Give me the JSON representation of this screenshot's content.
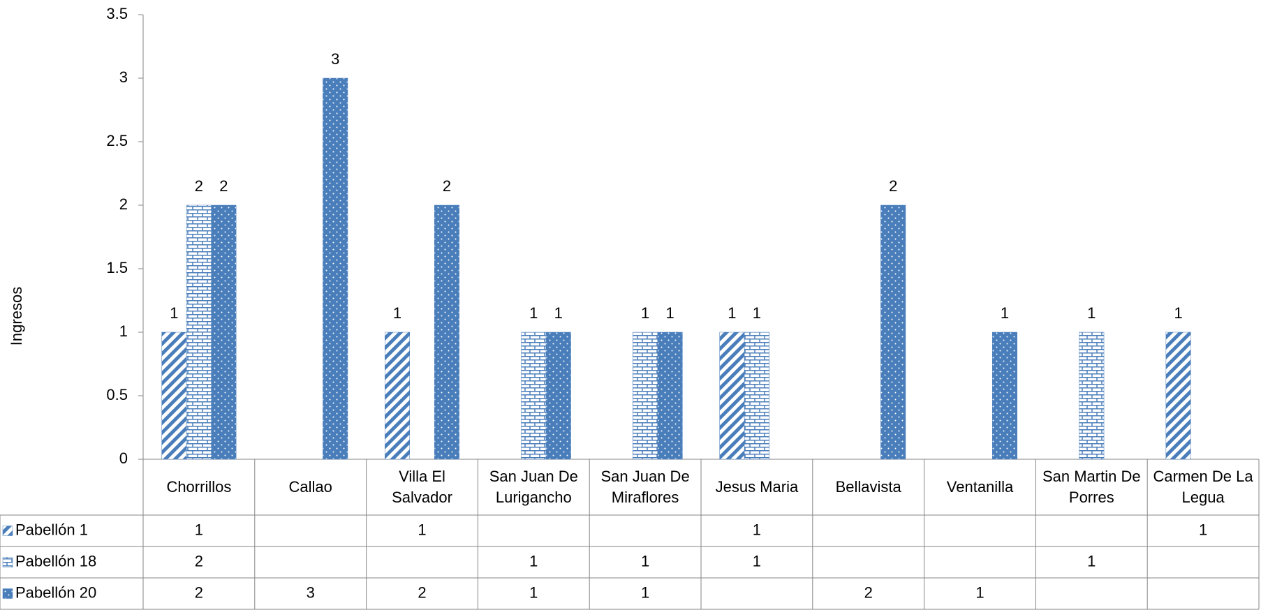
{
  "chart_data": {
    "type": "bar",
    "y_label": "Ingresos",
    "categories": [
      "Chorrillos",
      "Callao",
      "Villa El Salvador",
      "San Juan De Lurigancho",
      "San Juan De Miraflores",
      "Jesus Maria",
      "Bellavista",
      "Ventanilla",
      "San Martin De Porres",
      "Carmen De La Legua"
    ],
    "series": [
      {
        "name": "Pabellón 1",
        "color": "#4a7ebb",
        "pattern": "stripes",
        "values": [
          1,
          null,
          1,
          null,
          null,
          1,
          null,
          null,
          null,
          1
        ]
      },
      {
        "name": "Pabellón 18",
        "color": "#4a7ebb",
        "pattern": "brick",
        "values": [
          2,
          null,
          null,
          1,
          1,
          1,
          null,
          null,
          1,
          null
        ]
      },
      {
        "name": "Pabellón 20",
        "color": "#4a7ebb",
        "pattern": "dots",
        "values": [
          2,
          3,
          2,
          1,
          1,
          null,
          2,
          1,
          null,
          null
        ]
      }
    ],
    "ylim": [
      0,
      3.5
    ],
    "yticks": [
      0,
      0.5,
      1,
      1.5,
      2,
      2.5,
      3,
      3.5
    ],
    "grid": false,
    "data_table": true
  }
}
